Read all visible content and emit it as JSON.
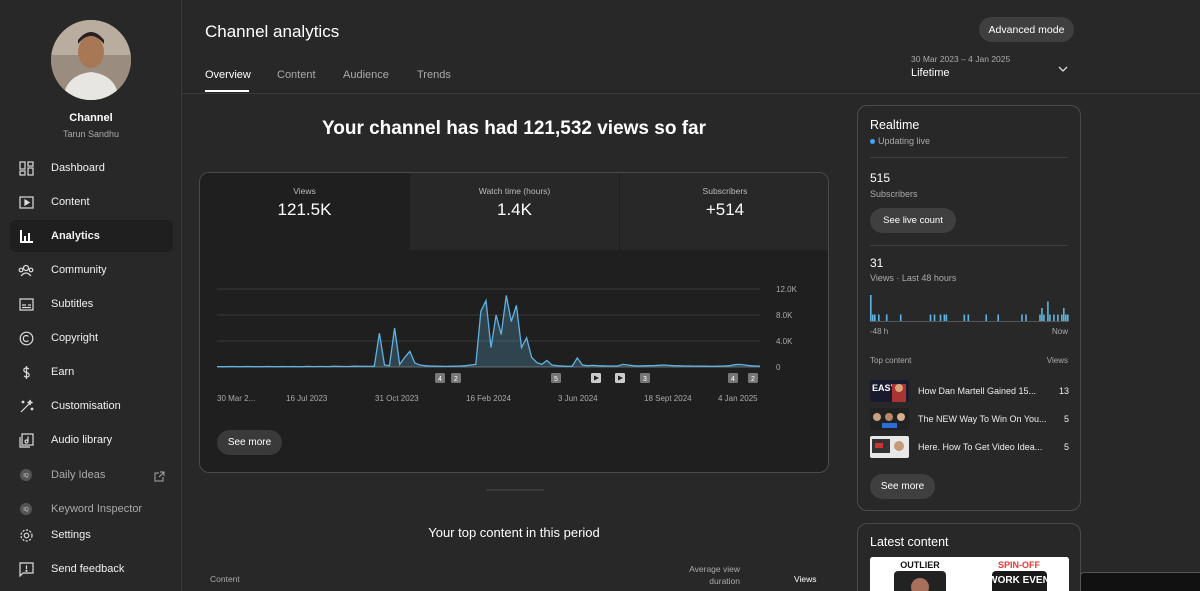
{
  "sidebar": {
    "channel_label": "Channel",
    "channel_name": "Tarun Sandhu",
    "items": [
      {
        "label": "Dashboard",
        "icon": "dashboard-icon"
      },
      {
        "label": "Content",
        "icon": "content-icon"
      },
      {
        "label": "Analytics",
        "icon": "analytics-icon",
        "active": true
      },
      {
        "label": "Community",
        "icon": "community-icon"
      },
      {
        "label": "Subtitles",
        "icon": "subtitles-icon"
      },
      {
        "label": "Copyright",
        "icon": "copyright-icon"
      },
      {
        "label": "Earn",
        "icon": "dollar-icon"
      },
      {
        "label": "Customisation",
        "icon": "magic-wand-icon"
      },
      {
        "label": "Audio library",
        "icon": "audio-library-icon"
      },
      {
        "label": "Daily Ideas",
        "icon": "extension-icon"
      },
      {
        "label": "Keyword Inspector",
        "icon": "extension-icon"
      },
      {
        "label": "Settings",
        "icon": "gear-icon"
      },
      {
        "label": "Send feedback",
        "icon": "feedback-icon"
      }
    ]
  },
  "header": {
    "title": "Channel analytics",
    "tabs": [
      "Overview",
      "Content",
      "Audience",
      "Trends"
    ],
    "advanced_mode": "Advanced mode",
    "date_range": "30 Mar 2023 – 4 Jan 2025",
    "period": "Lifetime"
  },
  "main": {
    "headline": "Your channel has had 121,532 views so far",
    "metrics": [
      {
        "label": "Views",
        "value": "121.5K"
      },
      {
        "label": "Watch time (hours)",
        "value": "1.4K"
      },
      {
        "label": "Subscribers",
        "value": "+514"
      }
    ],
    "see_more": "See more",
    "top_content_title": "Your top content in this period",
    "columns": {
      "content": "Content",
      "avg": "Average view duration",
      "views": "Views"
    }
  },
  "chart_data": {
    "type": "line",
    "x_tick_labels": [
      "30 Mar 2...",
      "16 Jul 2023",
      "31 Oct 2023",
      "16 Feb 2024",
      "3 Jun 2024",
      "18 Sept 2024",
      "4 Jan 2025"
    ],
    "y_tick_labels": [
      "12.0K",
      "8.0K",
      "4.0K",
      "0"
    ],
    "ylim": [
      0,
      12000
    ],
    "markers": [
      "4",
      "2",
      "5",
      "play",
      "play",
      "3",
      "4",
      "2"
    ],
    "series": [
      {
        "values": [
          50,
          60,
          40,
          70,
          50,
          60,
          80,
          40,
          60,
          50,
          70,
          60,
          50,
          80,
          60,
          70,
          50,
          60,
          90,
          60,
          80,
          70,
          60,
          100,
          90,
          80,
          70,
          120,
          110,
          100,
          90,
          130,
          5200,
          300,
          200,
          6000,
          400,
          1500,
          2400,
          600,
          300,
          200,
          150,
          120,
          100,
          90,
          100,
          120,
          150,
          200,
          300,
          400,
          8600,
          10200,
          3000,
          8000,
          5000,
          11000,
          7000,
          9500,
          3000,
          4500,
          1500,
          700,
          400,
          1000,
          300,
          200,
          150,
          100,
          120,
          1400,
          300,
          200,
          250,
          200,
          180,
          160,
          150,
          170,
          400,
          300,
          200,
          150,
          180,
          200,
          220,
          260,
          300,
          250,
          200,
          180,
          160,
          150,
          140,
          130,
          120,
          110,
          100,
          130,
          150,
          200,
          350,
          400,
          300,
          200,
          150,
          120
        ]
      }
    ]
  },
  "realtime": {
    "title": "Realtime",
    "live": "Updating live",
    "subs": "515",
    "subs_label": "Subscribers",
    "live_count": "See live count",
    "views": "31",
    "views_label": "Views · Last 48 hours",
    "left_label": "-48 h",
    "right_label": "Now",
    "hourly_views": [
      4,
      1,
      1,
      0,
      1,
      0,
      0,
      0,
      1,
      0,
      0,
      0,
      0,
      0,
      0,
      1,
      0,
      0,
      0,
      0,
      0,
      0,
      0,
      0,
      0,
      0,
      0,
      0,
      0,
      0,
      1,
      0,
      1,
      0,
      0,
      1,
      0,
      1,
      1,
      0,
      0,
      0,
      0,
      0,
      0,
      0,
      0,
      1,
      0,
      1,
      0,
      0,
      0,
      0,
      0,
      0,
      0,
      0,
      1,
      0,
      0,
      0,
      0,
      0,
      1,
      0,
      0,
      0,
      0,
      0,
      0,
      0,
      0,
      0,
      0,
      0,
      1,
      0,
      1,
      0,
      0,
      0,
      0,
      0,
      0,
      1,
      2,
      1,
      0,
      3,
      1,
      0,
      1,
      0,
      1,
      0,
      1,
      2,
      1,
      1
    ],
    "top_content_label": "Top content",
    "views_col": "Views",
    "items": [
      {
        "title": "How Dan Martell Gained 15...",
        "views": "13"
      },
      {
        "title": "The NEW Way To Win On You...",
        "views": "5"
      },
      {
        "title": "Here. How To Get Video Idea...",
        "views": "5"
      }
    ],
    "see_more": "See more"
  },
  "latest": {
    "title": "Latest content",
    "thumb_left": "OUTLIER",
    "thumb_right": "SPIN-OFF",
    "thumb_text": "WORK EVEN"
  },
  "colors": {
    "accent": "#3ea6ff",
    "chart": "#5fb3e0"
  }
}
